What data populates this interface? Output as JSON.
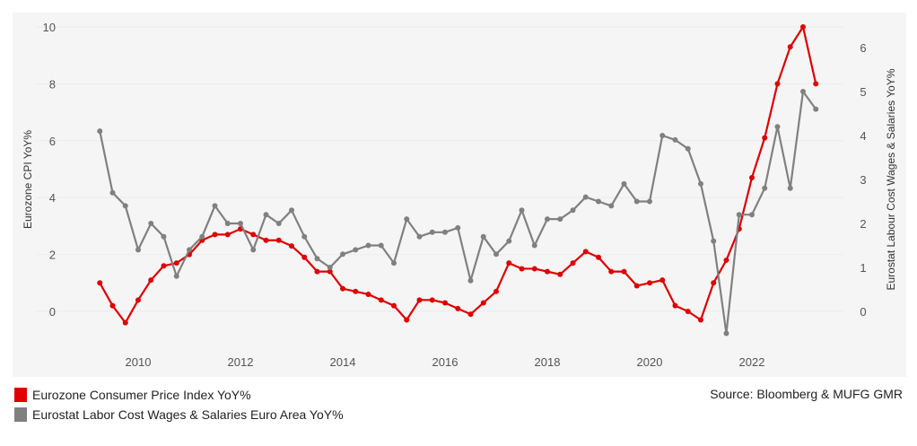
{
  "chart_data": {
    "type": "line",
    "title": "",
    "xlabel": "",
    "ylabel": "Eurozone CPI YoY%",
    "y2label": "Eurostat Labour Cost Wages & Salaries YoY%",
    "ylim": [
      -1,
      10.5
    ],
    "y2lim": [
      -0.65,
      6.8
    ],
    "xlim": [
      2008.5,
      2023.75
    ],
    "xticks": [
      "2010",
      "2012",
      "2014",
      "2016",
      "2018",
      "2020",
      "2022"
    ],
    "yticks": [
      "0",
      "2",
      "4",
      "6",
      "8",
      "10"
    ],
    "y2ticks": [
      "0",
      "1",
      "2",
      "3",
      "4",
      "5",
      "6"
    ],
    "grid": true,
    "x_start": 2009.25,
    "x_step": 0.25,
    "series": [
      {
        "name": "Eurozone Consumer Price Index YoY%",
        "axis": "left",
        "color": "#e00000",
        "values": [
          1.0,
          0.2,
          -0.4,
          0.4,
          1.1,
          1.6,
          1.7,
          2.0,
          2.5,
          2.7,
          2.7,
          2.9,
          2.7,
          2.5,
          2.5,
          2.3,
          1.9,
          1.4,
          1.4,
          0.8,
          0.7,
          0.6,
          0.4,
          0.2,
          -0.3,
          0.4,
          0.4,
          0.3,
          0.1,
          -0.1,
          0.3,
          0.7,
          1.7,
          1.5,
          1.5,
          1.4,
          1.3,
          1.7,
          2.1,
          1.9,
          1.4,
          1.4,
          0.9,
          1.0,
          1.1,
          0.2,
          0.0,
          -0.3,
          1.0,
          1.8,
          2.9,
          4.7,
          6.1,
          8.0,
          9.3,
          10.0,
          8.0
        ]
      },
      {
        "name": "Eurostat Labor Cost Wages & Salaries Euro Area YoY%",
        "axis": "right",
        "color": "#808080",
        "values": [
          4.1,
          2.7,
          2.4,
          1.4,
          2.0,
          1.7,
          0.8,
          1.4,
          1.7,
          2.4,
          2.0,
          2.0,
          1.4,
          2.2,
          2.0,
          2.3,
          1.7,
          1.2,
          1.0,
          1.3,
          1.4,
          1.5,
          1.5,
          1.1,
          2.1,
          1.7,
          1.8,
          1.8,
          1.9,
          0.7,
          1.7,
          1.3,
          1.6,
          2.3,
          1.5,
          2.1,
          2.1,
          2.3,
          2.6,
          2.5,
          2.4,
          2.9,
          2.5,
          2.5,
          4.0,
          3.9,
          3.7,
          2.9,
          1.6,
          -0.5,
          2.2,
          2.2,
          2.8,
          4.2,
          2.8,
          5.0,
          4.6
        ]
      }
    ],
    "legend": "bottom-left"
  },
  "legend_items": [
    "Eurozone Consumer Price Index YoY%",
    "Eurostat Labor Cost Wages & Salaries Euro Area YoY%"
  ],
  "source": "Source: Bloomberg & MUFG GMR",
  "colors": {
    "cpi": "#e00000",
    "wages": "#808080",
    "panel": "#f5f5f5"
  }
}
